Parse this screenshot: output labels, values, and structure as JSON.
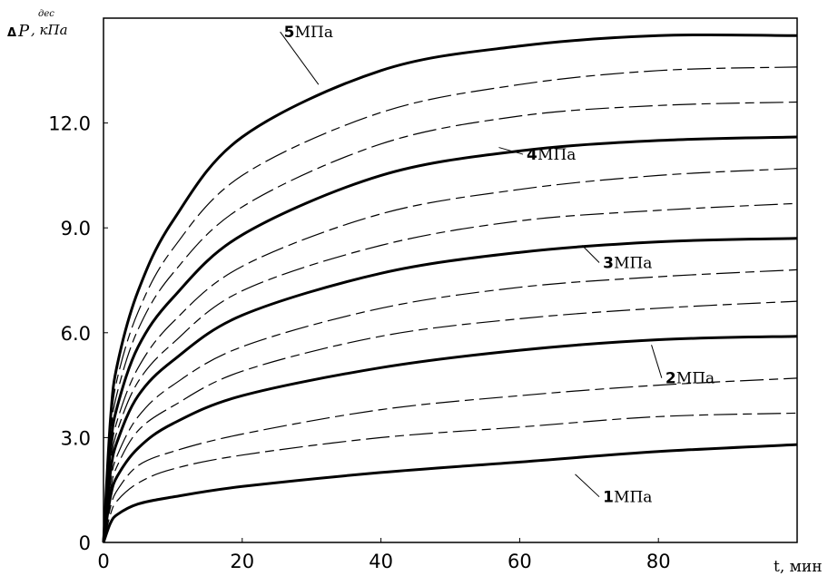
{
  "chart_data": {
    "type": "line",
    "title": "",
    "ylabel": {
      "delta": "Δ",
      "symbol": "P",
      "superscript": "дес",
      "units": ", кПа"
    },
    "xlabel": "t, мин",
    "xlim": [
      0,
      100
    ],
    "ylim": [
      0,
      15
    ],
    "x_ticks": [
      {
        "value": 0,
        "label": "0"
      },
      {
        "value": 20,
        "label": "20"
      },
      {
        "value": 40,
        "label": "40"
      },
      {
        "value": 60,
        "label": "60"
      },
      {
        "value": 80,
        "label": "80"
      }
    ],
    "y_ticks": [
      {
        "value": 0,
        "label": "0"
      },
      {
        "value": 3,
        "label": "3.0"
      },
      {
        "value": 6,
        "label": "6.0"
      },
      {
        "value": 9,
        "label": "9.0"
      },
      {
        "value": 12,
        "label": "12.0"
      }
    ],
    "grid": false,
    "legend": "none",
    "series": [
      {
        "name": "1 МПа",
        "label_num": "1",
        "label_unit": "МПа",
        "style": "solid",
        "x": [
          0,
          1,
          2,
          5,
          10,
          20,
          40,
          60,
          80,
          100
        ],
        "values": [
          0,
          0.55,
          0.8,
          1.1,
          1.3,
          1.6,
          2.0,
          2.3,
          2.6,
          2.8
        ]
      },
      {
        "name": "",
        "style": "dashed",
        "x": [
          0,
          1,
          2,
          5,
          10,
          20,
          40,
          60,
          80,
          100
        ],
        "values": [
          0,
          0.8,
          1.2,
          1.7,
          2.1,
          2.5,
          3.0,
          3.3,
          3.6,
          3.7
        ]
      },
      {
        "name": "",
        "style": "dashed",
        "x": [
          0,
          1,
          2,
          5,
          10,
          20,
          40,
          60,
          80,
          100
        ],
        "values": [
          0,
          1.0,
          1.5,
          2.2,
          2.6,
          3.1,
          3.8,
          4.2,
          4.5,
          4.7
        ]
      },
      {
        "name": "2 МПа",
        "label_num": "2",
        "label_unit": "МПа",
        "style": "solid",
        "x": [
          0,
          1,
          2,
          5,
          10,
          20,
          40,
          60,
          80,
          100
        ],
        "values": [
          0,
          1.3,
          1.9,
          2.7,
          3.4,
          4.2,
          5.0,
          5.5,
          5.8,
          5.9
        ]
      },
      {
        "name": "",
        "style": "dashed",
        "x": [
          0,
          1,
          2,
          5,
          10,
          20,
          40,
          60,
          80,
          100
        ],
        "values": [
          0,
          1.5,
          2.2,
          3.2,
          3.9,
          4.9,
          5.9,
          6.4,
          6.7,
          6.9
        ]
      },
      {
        "name": "",
        "style": "dashed",
        "x": [
          0,
          1,
          2,
          5,
          10,
          20,
          40,
          60,
          80,
          100
        ],
        "values": [
          0,
          1.7,
          2.5,
          3.6,
          4.5,
          5.6,
          6.7,
          7.3,
          7.6,
          7.8
        ]
      },
      {
        "name": "3 МПа",
        "label_num": "3",
        "label_unit": "МПа",
        "style": "solid",
        "x": [
          0,
          1,
          2,
          5,
          10,
          20,
          40,
          60,
          80,
          100
        ],
        "values": [
          0,
          2.0,
          2.9,
          4.2,
          5.2,
          6.5,
          7.7,
          8.3,
          8.6,
          8.7
        ]
      },
      {
        "name": "",
        "style": "dashed",
        "x": [
          0,
          1,
          2,
          5,
          10,
          20,
          40,
          60,
          80,
          100
        ],
        "values": [
          0,
          2.2,
          3.2,
          4.6,
          5.7,
          7.2,
          8.5,
          9.2,
          9.5,
          9.7
        ]
      },
      {
        "name": "",
        "style": "dashed",
        "x": [
          0,
          1,
          2,
          5,
          10,
          20,
          40,
          60,
          80,
          100
        ],
        "values": [
          0,
          2.4,
          3.5,
          5.0,
          6.3,
          7.9,
          9.4,
          10.1,
          10.5,
          10.7
        ]
      },
      {
        "name": "4 МПа",
        "label_num": "4",
        "label_unit": "МПа",
        "style": "solid",
        "x": [
          0,
          1,
          2,
          5,
          10,
          20,
          40,
          60,
          80,
          100
        ],
        "values": [
          0,
          2.7,
          3.9,
          5.6,
          7.0,
          8.8,
          10.5,
          11.2,
          11.5,
          11.6
        ]
      },
      {
        "name": "",
        "style": "dashed",
        "x": [
          0,
          1,
          2,
          5,
          10,
          20,
          40,
          60,
          80,
          100
        ],
        "values": [
          0,
          3.0,
          4.3,
          6.1,
          7.7,
          9.6,
          11.4,
          12.2,
          12.5,
          12.6
        ]
      },
      {
        "name": "",
        "style": "dashed",
        "x": [
          0,
          1,
          2,
          5,
          10,
          20,
          40,
          60,
          80,
          100
        ],
        "values": [
          0,
          3.2,
          4.7,
          6.6,
          8.4,
          10.5,
          12.3,
          13.1,
          13.5,
          13.6
        ]
      },
      {
        "name": "5 МПа",
        "label_num": "5",
        "label_unit": "МПа",
        "style": "solid",
        "x": [
          0,
          1,
          2,
          5,
          10,
          20,
          40,
          60,
          80,
          100
        ],
        "values": [
          0,
          3.5,
          5.1,
          7.2,
          9.2,
          11.6,
          13.5,
          14.2,
          14.5,
          14.5
        ]
      }
    ]
  }
}
